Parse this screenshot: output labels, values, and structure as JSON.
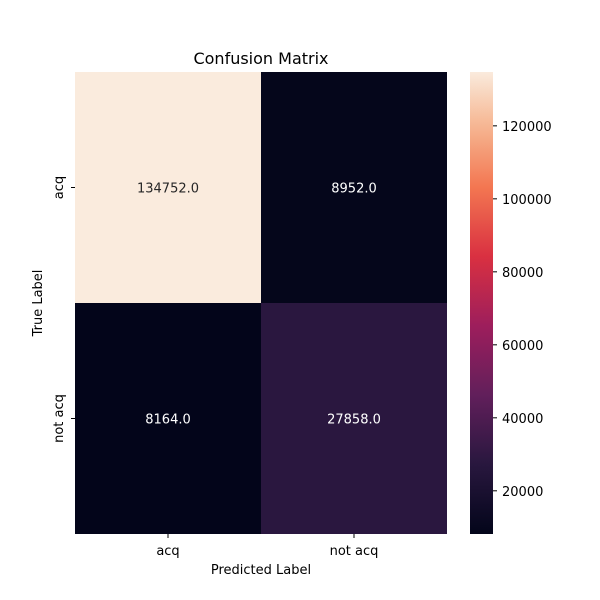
{
  "chart_data": {
    "type": "heatmap",
    "title": "Confusion Matrix",
    "xlabel": "Predicted Label",
    "ylabel": "True Label",
    "x_categories": [
      "acq",
      "not acq"
    ],
    "y_categories": [
      "acq",
      "not acq"
    ],
    "values": [
      [
        134752.0,
        8952.0
      ],
      [
        8164.0,
        27858.0
      ]
    ],
    "cell_labels": [
      [
        "134752.0",
        "8952.0"
      ],
      [
        "8164.0",
        "27858.0"
      ]
    ],
    "colorbar": {
      "min": 8164.0,
      "max": 134752.0,
      "ticks": [
        20000,
        40000,
        60000,
        80000,
        100000,
        120000
      ],
      "tick_labels": [
        "20000",
        "40000",
        "60000",
        "80000",
        "100000",
        "120000"
      ],
      "colormap": "rocket"
    },
    "grid": false
  }
}
